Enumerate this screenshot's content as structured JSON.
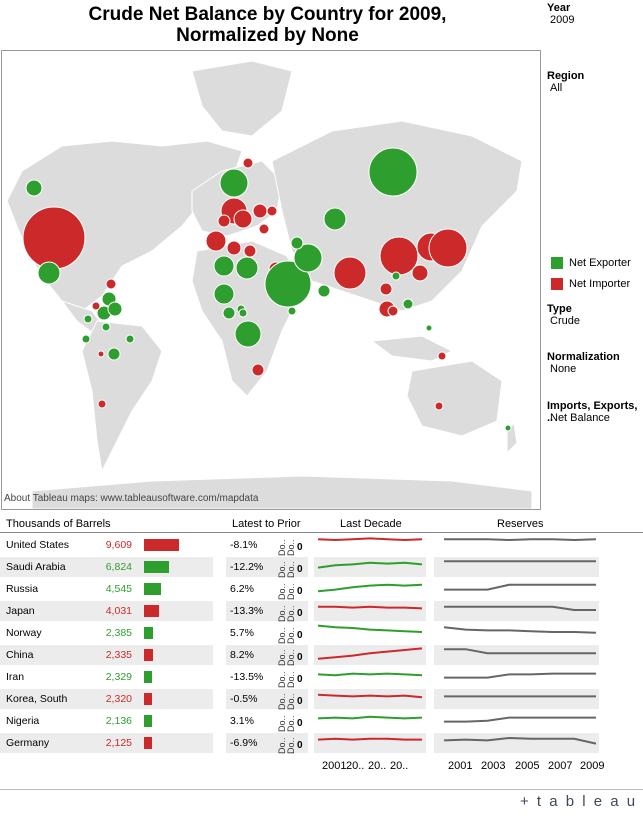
{
  "title_line1": "Crude Net Balance by Country for 2009,",
  "title_line2": "Normalized by None",
  "filters": [
    {
      "label": "Year",
      "value": "2009"
    },
    {
      "label": "Region",
      "value": "All"
    },
    {
      "label": "Type",
      "value": "Crude"
    },
    {
      "label": "Normalization",
      "value": "None"
    },
    {
      "label": "Imports, Exports, ..",
      "value": "Net Balance"
    }
  ],
  "legend": [
    {
      "label": "Net Exporter",
      "color": "#2e9e2e"
    },
    {
      "label": "Net Importer",
      "color": "#cc2a2a"
    }
  ],
  "map_credit": "About Tableau maps: www.tableausoftware.com/mapdata",
  "table": {
    "headers": {
      "thousands": "Thousands of Barrels",
      "latest": "Latest to Prior",
      "decade": "Last Decade",
      "reserves": "Reserves"
    },
    "spark_dlabels": "Do.. Do..",
    "zero": "0",
    "rows": [
      {
        "country": "United States",
        "value": "9,609",
        "net": "importer",
        "bar": 9609,
        "pct": "-8.1%"
      },
      {
        "country": "Saudi Arabia",
        "value": "6,824",
        "net": "exporter",
        "bar": 6824,
        "pct": "-12.2%"
      },
      {
        "country": "Russia",
        "value": "4,545",
        "net": "exporter",
        "bar": 4545,
        "pct": "6.2%"
      },
      {
        "country": "Japan",
        "value": "4,031",
        "net": "importer",
        "bar": 4031,
        "pct": "-13.3%"
      },
      {
        "country": "Norway",
        "value": "2,385",
        "net": "exporter",
        "bar": 2385,
        "pct": "5.7%"
      },
      {
        "country": "China",
        "value": "2,335",
        "net": "importer",
        "bar": 2335,
        "pct": "8.2%"
      },
      {
        "country": "Iran",
        "value": "2,329",
        "net": "exporter",
        "bar": 2329,
        "pct": "-13.5%"
      },
      {
        "country": "Korea, South",
        "value": "2,320",
        "net": "importer",
        "bar": 2320,
        "pct": "-0.5%"
      },
      {
        "country": "Nigeria",
        "value": "2,136",
        "net": "exporter",
        "bar": 2136,
        "pct": "3.1%"
      },
      {
        "country": "Germany",
        "value": "2,125",
        "net": "importer",
        "bar": 2125,
        "pct": "-6.9%"
      }
    ],
    "decade_ticks": [
      "2001",
      "20..",
      "20..",
      "20.."
    ],
    "reserves_ticks": [
      "2001",
      "2003",
      "2005",
      "2007",
      "2009"
    ]
  },
  "logo_text": "+ t a b l e a u",
  "colors": {
    "exporter": "#2e9e2e",
    "importer": "#cc2a2a",
    "reserves_line": "#666666"
  }
}
